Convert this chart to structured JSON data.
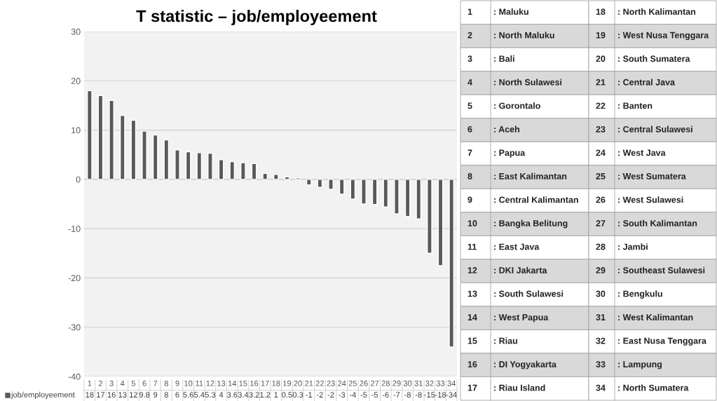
{
  "chart_data": {
    "type": "bar",
    "title": "T statistic – job/employeement",
    "categories": [
      "1",
      "2",
      "3",
      "4",
      "5",
      "6",
      "7",
      "8",
      "9",
      "10",
      "11",
      "12",
      "13",
      "14",
      "15",
      "16",
      "17",
      "18",
      "19",
      "20",
      "21",
      "22",
      "23",
      "24",
      "25",
      "26",
      "27",
      "28",
      "29",
      "30",
      "31",
      "32",
      "33",
      "34"
    ],
    "series": [
      {
        "name": "job/employeement",
        "color": "#595959",
        "values": [
          18,
          17,
          16,
          13,
          12,
          9.8,
          9,
          8,
          6,
          5.6,
          5.4,
          5.3,
          4,
          3.6,
          3.4,
          3.2,
          1.2,
          1,
          0.5,
          0.3,
          -1.1,
          -1.6,
          -2,
          -3,
          -4,
          -5,
          -5.1,
          -5.6,
          -7,
          -7.5,
          -8,
          -15,
          -17.5,
          -34
        ],
        "value_labels": [
          "18",
          "17",
          "16",
          "13",
          "12",
          "9.8",
          "9",
          "8",
          "6",
          "5.6",
          "5.4",
          "5.3",
          "4",
          "3.6",
          "3.4",
          "3.2",
          "1.2",
          "1",
          "0.5",
          "0.3",
          "-1",
          "-2",
          "-2",
          "-3",
          "-4",
          "-5",
          "-5",
          "-6",
          "-7",
          "-8",
          "-8",
          "-15",
          "-18",
          "-34"
        ]
      }
    ],
    "ylim": [
      -40,
      30
    ],
    "yticks": [
      -40,
      -30,
      -20,
      -10,
      0,
      10,
      20,
      30
    ],
    "grid": "y",
    "legend": "bottom",
    "annotations": [
      ": Maluku",
      ": North Maluku",
      ": Bali",
      ": North Sulawesi",
      ": Gorontalo",
      ": Aceh",
      ": Papua",
      ": East Kalimantan",
      ": Central Kalimantan",
      ": Bangka Belitung",
      ": East Java",
      ": DKI Jakarta",
      ": South Sulawesi",
      ": West Papua",
      ": Riau",
      ": DI Yogyakarta",
      ": Riau Island",
      ": North Kalimantan",
      ": West Nusa Tenggara",
      ": South Sumatera",
      ": Central Java",
      ": Banten",
      ": Central Sulawesi",
      ": West Java",
      ": West Sumatera",
      ": West Sulawesi",
      ": South Kalimantan",
      ": Jambi",
      ": Southeast Sulawesi",
      ": Bengkulu",
      ": West Kalimantan",
      ": East Nusa Tenggara",
      ": Lampung",
      ": North Sumatera"
    ]
  }
}
